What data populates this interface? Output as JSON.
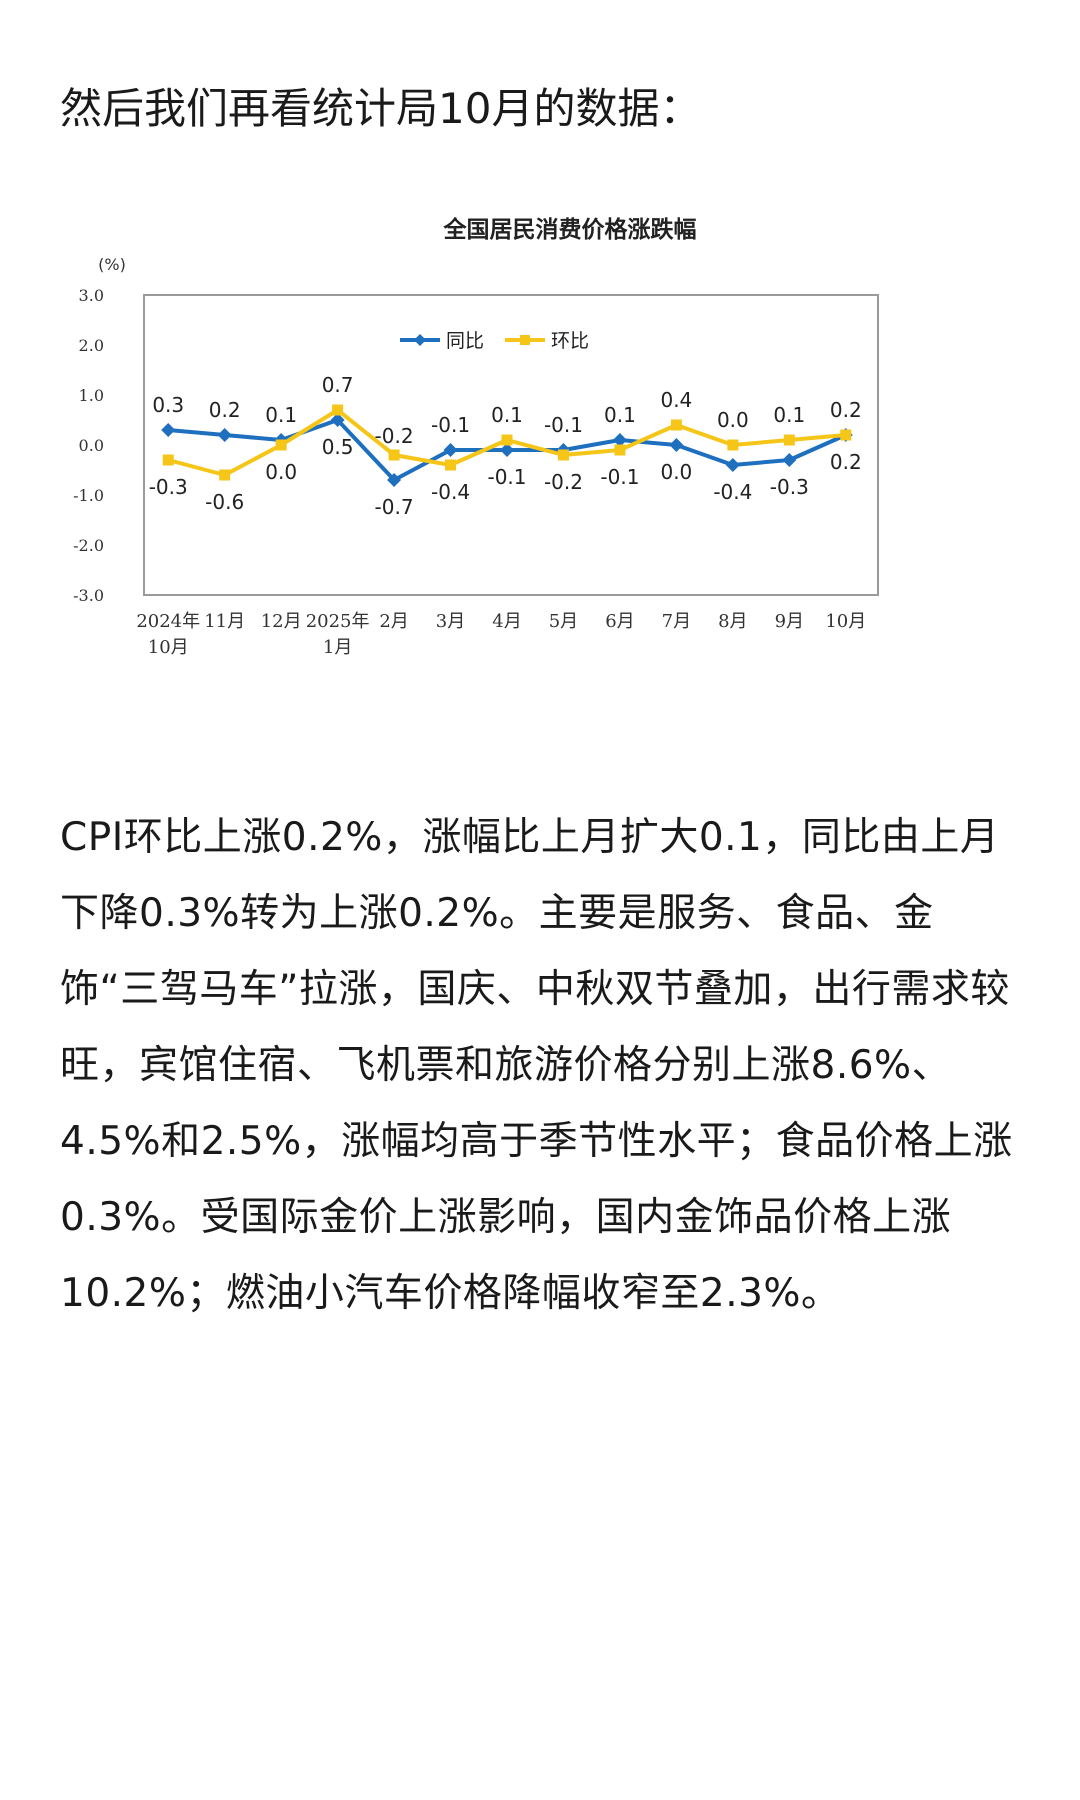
{
  "intro": "然后我们再看统计局10月的数据：",
  "paragraph": "CPI环比上涨0.2%，涨幅比上月扩大0.1，同比由上月下降0.3%转为上涨0.2%。主要是服务、食品、金饰“三驾马车”拉涨，国庆、中秋双节叠加，出行需求较旺，宾馆住宿、飞机票和旅游价格分别上涨8.6%、4.5%和2.5%，涨幅均高于季节性水平；食品价格上涨0.3%。受国际金价上涨影响，国内金饰品价格上涨10.2%；燃油小汽车价格降幅收窄至2.3%。",
  "chart_data": {
    "type": "line",
    "title": "全国居民消费价格涨跌幅",
    "ylabel": "(%)",
    "xlabel": "",
    "ylim": [
      -3.0,
      3.0
    ],
    "yticks": [
      "3.0",
      "2.0",
      "1.0",
      "0.0",
      "-1.0",
      "-2.0",
      "-3.0"
    ],
    "grid": false,
    "legend_position": "top-center",
    "categories": [
      "2024年\n10月",
      "11月",
      "12月",
      "2025年\n1月",
      "2月",
      "3月",
      "4月",
      "5月",
      "6月",
      "7月",
      "8月",
      "9月",
      "10月"
    ],
    "series": [
      {
        "name": "同比",
        "color": "#1f6fbf",
        "marker": "diamond",
        "values": [
          0.3,
          0.2,
          0.1,
          0.5,
          -0.7,
          -0.1,
          -0.1,
          -0.1,
          0.1,
          0.0,
          -0.4,
          -0.3,
          0.2
        ],
        "labels": [
          "0.3",
          "0.2",
          "0.1",
          "0.5",
          "-0.7",
          "-0.1",
          "-0.1",
          "-0.1",
          "0.1",
          "0.0",
          "-0.4",
          "-0.3",
          "0.2"
        ]
      },
      {
        "name": "环比",
        "color": "#f5c518",
        "marker": "square",
        "values": [
          -0.3,
          -0.6,
          0.0,
          0.7,
          -0.2,
          -0.4,
          0.1,
          -0.2,
          -0.1,
          0.4,
          0.0,
          0.1,
          0.2
        ],
        "labels": [
          "-0.3",
          "-0.6",
          "0.0",
          "0.7",
          "-0.2",
          "-0.4",
          "0.1",
          "-0.2",
          "-0.1",
          "0.4",
          "0.0",
          "0.1",
          "0.2"
        ]
      }
    ]
  }
}
